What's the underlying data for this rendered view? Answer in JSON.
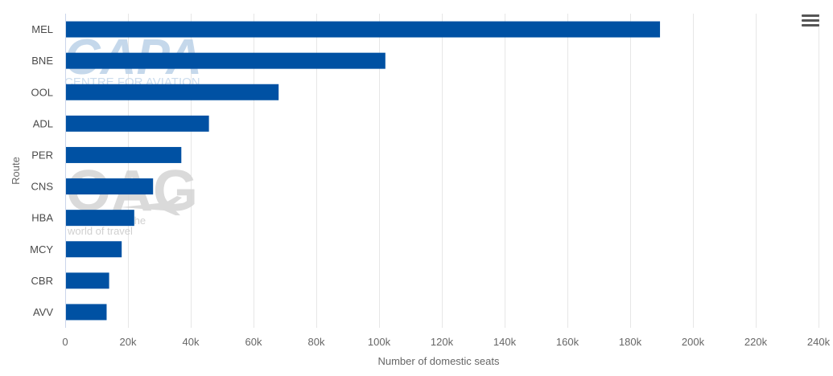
{
  "chart_data": {
    "type": "bar",
    "orientation": "horizontal",
    "title": "",
    "xlabel": "Number of domestic seats",
    "ylabel": "Route",
    "categories": [
      "MEL",
      "BNE",
      "OOL",
      "ADL",
      "PER",
      "CNS",
      "HBA",
      "MCY",
      "CBR",
      "AVV"
    ],
    "values": [
      189500,
      102000,
      68000,
      45800,
      37000,
      28000,
      22000,
      18000,
      14000,
      13200
    ],
    "xlim": [
      0,
      240000
    ],
    "xticks": [
      0,
      20000,
      40000,
      60000,
      80000,
      100000,
      120000,
      140000,
      160000,
      180000,
      200000,
      220000,
      240000
    ],
    "xtick_labels": [
      "0",
      "20k",
      "40k",
      "60k",
      "80k",
      "100k",
      "120k",
      "140k",
      "160k",
      "180k",
      "200k",
      "220k",
      "240k"
    ],
    "grid": true,
    "legend": "none",
    "bar_color": "#0051a3"
  },
  "watermark": {
    "logo1_text": "CAPA",
    "logo1_subtext": "CENTRE FOR AVIATION",
    "logo2_text": "OAG",
    "logo2_tagline_1": "the",
    "logo2_tagline_2": "world of travel"
  },
  "toolbar": {
    "menu_icon": "hamburger-menu-icon"
  }
}
